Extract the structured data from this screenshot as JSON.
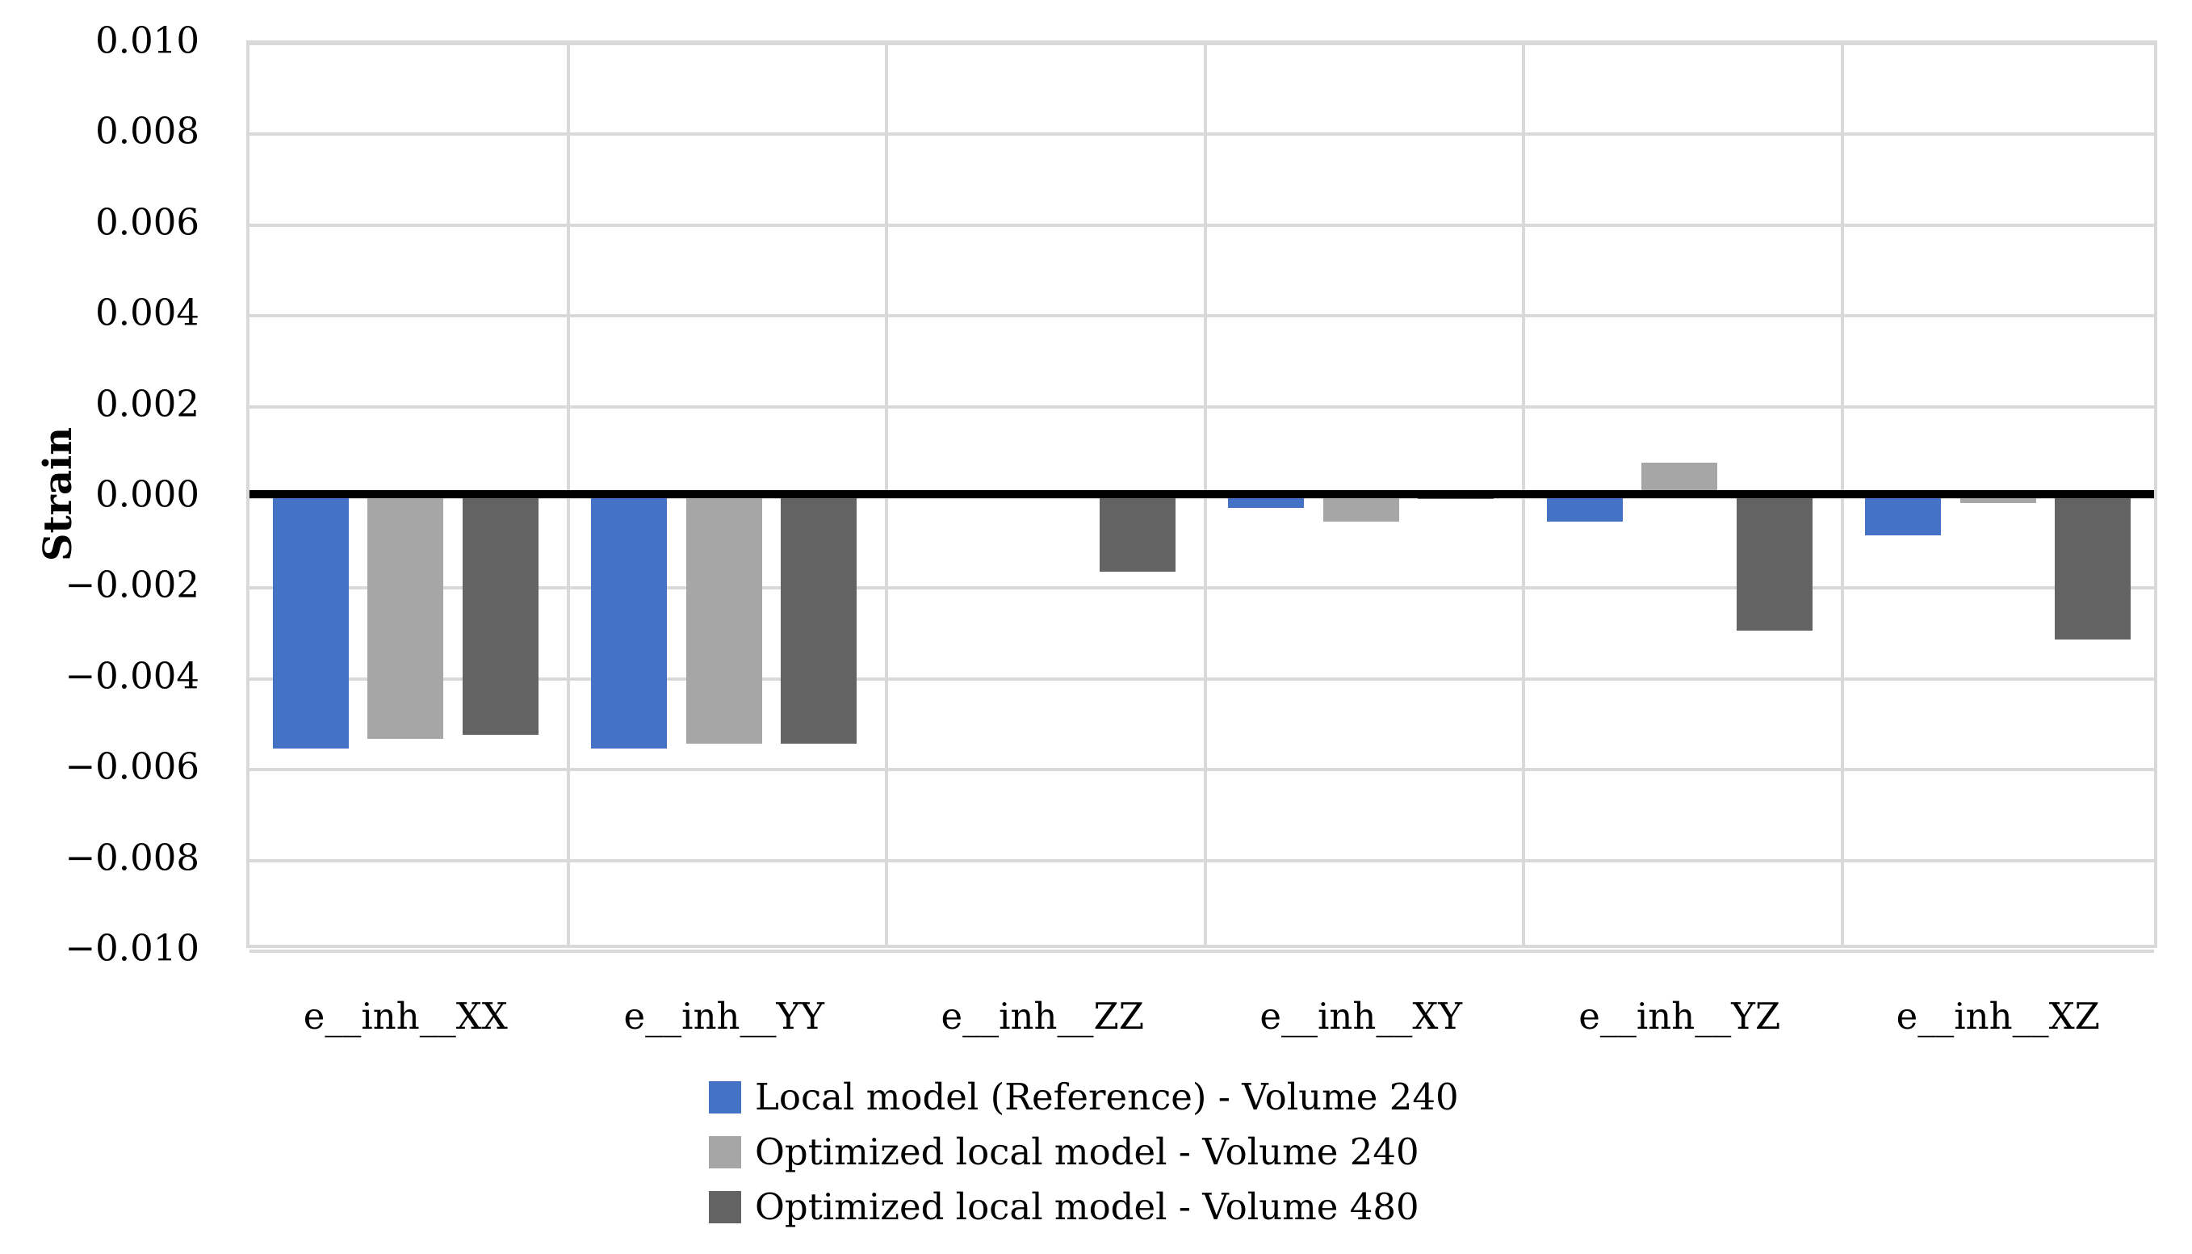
{
  "chart_data": {
    "type": "bar",
    "title": "",
    "xlabel": "",
    "ylabel": "Strain",
    "ylim": [
      -0.01,
      0.01
    ],
    "ytick_step": 0.002,
    "ytick_labels": [
      "0.010",
      "0.008",
      "0.006",
      "0.004",
      "0.002",
      "0.000",
      "−0.002",
      "−0.004",
      "−0.006",
      "−0.008",
      "−0.010"
    ],
    "grid": true,
    "legend_position": "bottom",
    "categories": [
      "e__inh__XX",
      "e__inh__YY",
      "e__inh__ZZ",
      "e__inh__XY",
      "e__inh__YZ",
      "e__inh__XZ"
    ],
    "series": [
      {
        "name": "Local model (Reference) - Volume 240",
        "color": "#4472C4",
        "values": [
          -0.0056,
          -0.0056,
          0.0,
          -0.0003,
          -0.0006,
          -0.0009
        ]
      },
      {
        "name": "Optimized local model - Volume 240",
        "color": "#A6A6A6",
        "values": [
          -0.0054,
          -0.0055,
          0.0,
          -0.0006,
          0.0007,
          -0.0002
        ]
      },
      {
        "name": "Optimized local model - Volume 480",
        "color": "#636363",
        "values": [
          -0.0053,
          -0.0055,
          -0.0017,
          -0.0001,
          -0.003,
          -0.0032
        ]
      }
    ],
    "colors": {
      "grid": "#D9D9D9",
      "zero_line": "#000000",
      "background": "#FFFFFF"
    }
  }
}
